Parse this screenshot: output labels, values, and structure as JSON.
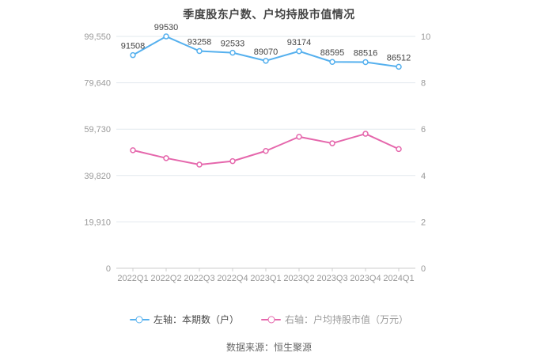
{
  "chart_data": {
    "type": "line",
    "title": "季度股东户数、户均持股市值情况",
    "categories": [
      "2022Q1",
      "2022Q2",
      "2022Q3",
      "2022Q4",
      "2023Q1",
      "2023Q2",
      "2023Q3",
      "2023Q4",
      "2024Q1"
    ],
    "series": [
      {
        "name": "左轴：本期数（户）",
        "axis": "left",
        "color": "#55b0ee",
        "values": [
          91508,
          99530,
          93258,
          92533,
          89070,
          93174,
          88595,
          88516,
          86512
        ],
        "show_labels": true
      },
      {
        "name": "右轴：户均持股市值（万元）",
        "axis": "right",
        "color": "#e567ac",
        "values": [
          5.09,
          4.75,
          4.47,
          4.62,
          5.06,
          5.67,
          5.39,
          5.8,
          5.14
        ],
        "show_labels": false
      }
    ],
    "left_axis": {
      "min": 0,
      "max": 99550,
      "tick_labels": [
        "0",
        "19,910",
        "39,820",
        "59,730",
        "79,640",
        "99,550"
      ]
    },
    "right_axis": {
      "min": 0,
      "max": 10,
      "tick_labels": [
        "0",
        "2",
        "4",
        "6",
        "8",
        "10"
      ]
    },
    "grid": true,
    "legend_position": "bottom"
  },
  "legend": {
    "items": [
      {
        "label": "左轴：本期数（户）",
        "color": "#55b0ee",
        "text_color": "#464646"
      },
      {
        "label": "右轴：户均持股市值（万元）",
        "color": "#e567ac",
        "text_color": "#999999"
      }
    ]
  },
  "footer": {
    "source": "数据来源：恒生聚源"
  },
  "colors": {
    "axis_line": "#cccccc",
    "gridline": "#e2e8ee",
    "axis_label": "#999999",
    "data_label": "#454545",
    "title": "#454545"
  }
}
